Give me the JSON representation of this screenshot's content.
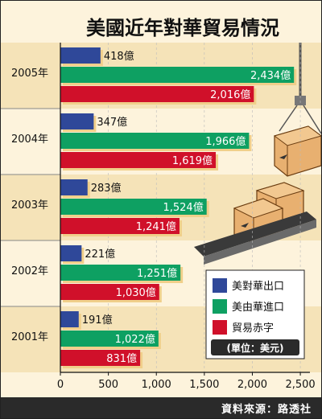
{
  "chart_data": {
    "type": "bar",
    "title": "美國近年對華貿易情況",
    "categories": [
      "2005年",
      "2004年",
      "2003年",
      "2002年",
      "2001年"
    ],
    "series": [
      {
        "name": "美對華出口",
        "color": "#2f4899",
        "values": [
          418,
          347,
          283,
          221,
          191
        ],
        "labels": [
          "418億",
          "347億",
          "283億",
          "221億",
          "191億"
        ]
      },
      {
        "name": "美由華進口",
        "color": "#0ea062",
        "values": [
          2434,
          1966,
          1524,
          1251,
          1022
        ],
        "labels": [
          "2,434億",
          "1,966億",
          "1,524億",
          "1,251億",
          "1,022億"
        ]
      },
      {
        "name": "貿易赤字",
        "color": "#d0102a",
        "values": [
          2016,
          1619,
          1241,
          1030,
          831
        ],
        "labels": [
          "2,016億",
          "1,619億",
          "1,241億",
          "1,030億",
          "831億"
        ]
      }
    ],
    "xlim": [
      0,
      2600
    ],
    "xticks": [
      0,
      500,
      1000,
      1500,
      2000,
      2500
    ],
    "xtick_labels": [
      "0",
      "500",
      "1,000",
      "1,500",
      "2,000",
      "2,500"
    ],
    "unit_note": "(單位：美元)",
    "legend_position": "bottom-right",
    "grid": true
  },
  "source": "資料來源：路透社",
  "colors": {
    "background": "#fdf3dc",
    "band": "#f5e3b8",
    "text": "#111111"
  }
}
